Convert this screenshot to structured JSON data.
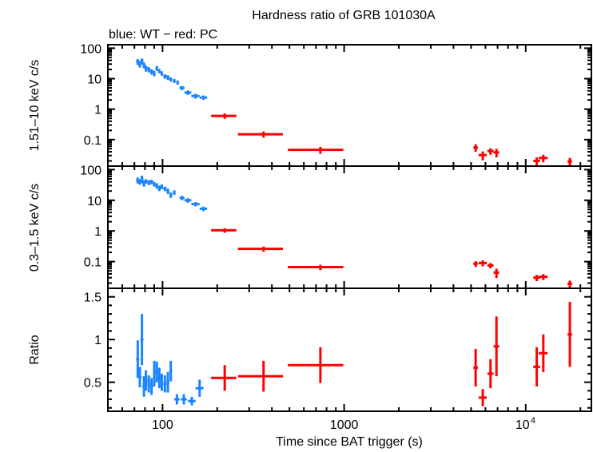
{
  "chart_data": {
    "type": "scatter",
    "title": "Hardness ratio of GRB 101030A",
    "subtitle": "blue: WT − red: PC",
    "xlabel": "Time since BAT trigger (s)",
    "xscale": "log",
    "xlim": [
      50,
      23000
    ],
    "xticks": [
      {
        "value": 100,
        "label": "100"
      },
      {
        "value": 1000,
        "label": "1000"
      },
      {
        "value": 10000,
        "label": "10",
        "sup": "4"
      }
    ],
    "colors": {
      "WT": "#1a85ff",
      "PC": "#ff0000",
      "axis": "#000000"
    },
    "panels": [
      {
        "id": "hard",
        "ylabel": "1.51–10 keV c/s",
        "yscale": "log",
        "ylim": [
          0.0135,
          130
        ],
        "yticks": [
          {
            "value": 100,
            "label": "100"
          },
          {
            "value": 10,
            "label": "10"
          },
          {
            "value": 1,
            "label": "1"
          },
          {
            "value": 0.1,
            "label": "0.1"
          }
        ],
        "series": [
          {
            "name": "WT",
            "points": [
              [
                73,
                36,
                1.5,
                8
              ],
              [
                75,
                30,
                1.5,
                7
              ],
              [
                77,
                38,
                1.5,
                8
              ],
              [
                79,
                28,
                1.5,
                6
              ],
              [
                81,
                22,
                1.5,
                5
              ],
              [
                84,
                20,
                1.5,
                4
              ],
              [
                87,
                17,
                1.5,
                3.5
              ],
              [
                90,
                15,
                1.5,
                3
              ],
              [
                93,
                22,
                1.5,
                4
              ],
              [
                96,
                18,
                1.5,
                3
              ],
              [
                99,
                15,
                1.5,
                2.5
              ],
              [
                103,
                12,
                2,
                2
              ],
              [
                107,
                11,
                2,
                2
              ],
              [
                111,
                9.5,
                2,
                1.5
              ],
              [
                116,
                8.5,
                2,
                1.3
              ],
              [
                121,
                7.5,
                2,
                1.2
              ],
              [
                128,
                5,
                4,
                0.8
              ],
              [
                138,
                3.5,
                6,
                0.6
              ],
              [
                152,
                2.7,
                8,
                0.5
              ],
              [
                168,
                2.4,
                8,
                0.4
              ]
            ]
          },
          {
            "name": "PC",
            "points": [
              [
                220,
                0.6,
                35,
                0.12
              ],
              [
                360,
                0.15,
                100,
                0.035
              ],
              [
                740,
                0.046,
                250,
                0.012
              ],
              [
                5300,
                0.055,
                150,
                0.015
              ],
              [
                5800,
                0.031,
                300,
                0.01
              ],
              [
                6400,
                0.042,
                250,
                0.01
              ],
              [
                6900,
                0.038,
                250,
                0.012
              ],
              [
                11500,
                0.02,
                500,
                0.006
              ],
              [
                12500,
                0.025,
                700,
                0.007
              ],
              [
                17500,
                0.019,
                500,
                0.006
              ]
            ]
          }
        ]
      },
      {
        "id": "soft",
        "ylabel": "0.3–1.5 keV c/s",
        "yscale": "log",
        "ylim": [
          0.0135,
          130
        ],
        "yticks": [
          {
            "value": 100,
            "label": "100"
          },
          {
            "value": 10,
            "label": "10"
          },
          {
            "value": 1,
            "label": "1"
          },
          {
            "value": 0.1,
            "label": "0.1"
          }
        ],
        "series": [
          {
            "name": "WT",
            "points": [
              [
                73,
                45,
                1.5,
                10
              ],
              [
                75,
                40,
                1.5,
                8
              ],
              [
                77,
                50,
                1.5,
                14
              ],
              [
                79,
                36,
                1.5,
                8
              ],
              [
                81,
                42,
                1.5,
                7
              ],
              [
                84,
                38,
                1.5,
                7
              ],
              [
                87,
                40,
                1.5,
                7
              ],
              [
                90,
                34,
                1.5,
                6
              ],
              [
                93,
                30,
                1.5,
                6
              ],
              [
                96,
                25,
                1.5,
                5
              ],
              [
                99,
                28,
                1.5,
                5
              ],
              [
                103,
                24,
                2,
                4
              ],
              [
                107,
                20,
                2,
                4
              ],
              [
                111,
                15,
                2,
                3
              ],
              [
                116,
                18,
                2,
                3
              ],
              [
                128,
                12,
                4,
                2
              ],
              [
                138,
                10,
                6,
                1.7
              ],
              [
                152,
                7.5,
                8,
                1.2
              ],
              [
                168,
                5.3,
                8,
                0.9
              ]
            ]
          },
          {
            "name": "PC",
            "points": [
              [
                220,
                1.05,
                35,
                0.18
              ],
              [
                360,
                0.26,
                100,
                0.05
              ],
              [
                740,
                0.066,
                250,
                0.013
              ],
              [
                5300,
                0.085,
                150,
                0.018
              ],
              [
                5800,
                0.09,
                300,
                0.02
              ],
              [
                6400,
                0.075,
                250,
                0.015
              ],
              [
                6900,
                0.044,
                250,
                0.015
              ],
              [
                11500,
                0.03,
                500,
                0.007
              ],
              [
                12500,
                0.032,
                700,
                0.007
              ],
              [
                17500,
                0.019,
                500,
                0.005
              ]
            ]
          }
        ]
      },
      {
        "id": "ratio",
        "ylabel": "Ratio",
        "yscale": "linear",
        "ylim": [
          0.16,
          1.6
        ],
        "yticks": [
          {
            "value": 1.5,
            "label": "1.5"
          },
          {
            "value": 1,
            "label": "1"
          },
          {
            "value": 0.5,
            "label": "0.5"
          }
        ],
        "series": [
          {
            "name": "WT",
            "points": [
              [
                73,
                0.77,
                1.5,
                0.22
              ],
              [
                75,
                0.56,
                1.5,
                0.12
              ],
              [
                77,
                1.0,
                1.5,
                0.3
              ],
              [
                79,
                0.45,
                1.5,
                0.12
              ],
              [
                81,
                0.52,
                1.5,
                0.12
              ],
              [
                84,
                0.48,
                1.5,
                0.1
              ],
              [
                87,
                0.45,
                1.5,
                0.1
              ],
              [
                90,
                0.6,
                1.5,
                0.15
              ],
              [
                93,
                0.62,
                1.5,
                0.12
              ],
              [
                96,
                0.55,
                1.5,
                0.12
              ],
              [
                99,
                0.5,
                1.5,
                0.1
              ],
              [
                103,
                0.48,
                2,
                0.1
              ],
              [
                107,
                0.5,
                2,
                0.12
              ],
              [
                111,
                0.63,
                2,
                0.12
              ],
              [
                120,
                0.3,
                4,
                0.06
              ],
              [
                131,
                0.3,
                5,
                0.06
              ],
              [
                145,
                0.28,
                7,
                0.05
              ],
              [
                160,
                0.43,
                8,
                0.1
              ]
            ]
          },
          {
            "name": "PC",
            "points": [
              [
                220,
                0.55,
                35,
                0.15
              ],
              [
                360,
                0.57,
                100,
                0.18
              ],
              [
                740,
                0.7,
                250,
                0.21
              ],
              [
                5300,
                0.67,
                150,
                0.22
              ],
              [
                5800,
                0.32,
                300,
                0.1
              ],
              [
                6400,
                0.6,
                250,
                0.17
              ],
              [
                6900,
                0.92,
                250,
                0.35
              ],
              [
                11500,
                0.68,
                500,
                0.23
              ],
              [
                12500,
                0.84,
                700,
                0.22
              ],
              [
                17500,
                1.06,
                500,
                0.38
              ]
            ]
          }
        ]
      }
    ]
  }
}
